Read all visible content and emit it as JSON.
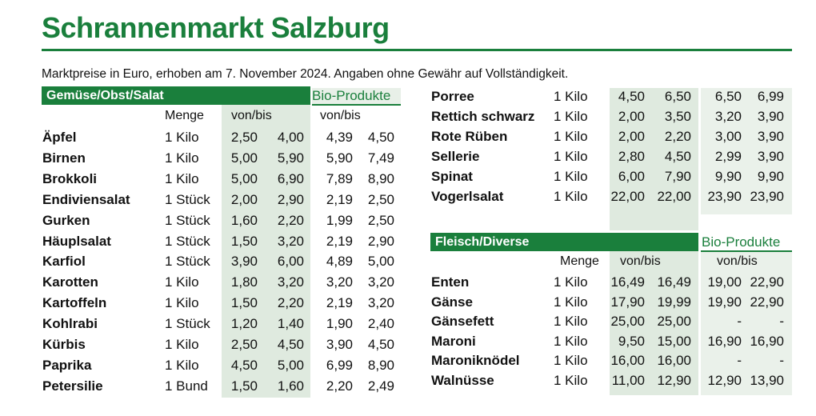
{
  "title": "Schrannenmarkt Salzburg",
  "subtitle": "Marktpreise in Euro, erhoben am 7. November 2024. Angaben ohne Gewähr auf Vollständigkeit.",
  "colors": {
    "accent": "#1a7f3c",
    "shade": "#dfeadf"
  },
  "left": {
    "section_title": "Gemüse/Obst/Salat",
    "bio_label": "Bio-Produkte",
    "headers": {
      "menge": "Menge",
      "vonbis": "von/bis",
      "bio_vonbis": "von/bis"
    },
    "rows": [
      {
        "name": "Äpfel",
        "menge": "1 Kilo",
        "von": "2,50",
        "bis": "4,00",
        "bio_von": "4,39",
        "bio_bis": "4,50"
      },
      {
        "name": "Birnen",
        "menge": "1 Kilo",
        "von": "5,00",
        "bis": "5,90",
        "bio_von": "5,90",
        "bio_bis": "7,49"
      },
      {
        "name": "Brokkoli",
        "menge": "1 Kilo",
        "von": "5,00",
        "bis": "6,90",
        "bio_von": "7,89",
        "bio_bis": "8,90"
      },
      {
        "name": "Endiviensalat",
        "menge": "1 Stück",
        "von": "2,00",
        "bis": "2,90",
        "bio_von": "2,19",
        "bio_bis": "2,50"
      },
      {
        "name": "Gurken",
        "menge": "1 Stück",
        "von": "1,60",
        "bis": "2,20",
        "bio_von": "1,99",
        "bio_bis": "2,50"
      },
      {
        "name": "Häuplsalat",
        "menge": "1 Stück",
        "von": "1,50",
        "bis": "3,20",
        "bio_von": "2,19",
        "bio_bis": "2,90"
      },
      {
        "name": "Karfiol",
        "menge": "1 Stück",
        "von": "3,90",
        "bis": "6,00",
        "bio_von": "4,89",
        "bio_bis": "5,00"
      },
      {
        "name": "Karotten",
        "menge": "1 Kilo",
        "von": "1,80",
        "bis": "3,20",
        "bio_von": "3,20",
        "bio_bis": "3,20"
      },
      {
        "name": "Kartoffeln",
        "menge": "1 Kilo",
        "von": "1,50",
        "bis": "2,20",
        "bio_von": "2,19",
        "bio_bis": "3,20"
      },
      {
        "name": "Kohlrabi",
        "menge": "1 Stück",
        "von": "1,20",
        "bis": "1,40",
        "bio_von": "1,90",
        "bio_bis": "2,40"
      },
      {
        "name": "Kürbis",
        "menge": "1 Kilo",
        "von": "2,50",
        "bis": "4,50",
        "bio_von": "3,90",
        "bio_bis": "4,50"
      },
      {
        "name": "Paprika",
        "menge": "1 Kilo",
        "von": "4,50",
        "bis": "5,00",
        "bio_von": "6,99",
        "bio_bis": "8,90"
      },
      {
        "name": "Petersilie",
        "menge": "1 Bund",
        "von": "1,50",
        "bis": "1,60",
        "bio_von": "2,20",
        "bio_bis": "2,49"
      }
    ]
  },
  "right_top": {
    "rows": [
      {
        "name": "Porree",
        "menge": "1 Kilo",
        "von": "4,50",
        "bis": "6,50",
        "bio_von": "6,50",
        "bio_bis": "6,99"
      },
      {
        "name": "Rettich schwarz",
        "menge": "1 Kilo",
        "von": "2,00",
        "bis": "3,50",
        "bio_von": "3,20",
        "bio_bis": "3,90"
      },
      {
        "name": "Rote Rüben",
        "menge": "1 Kilo",
        "von": "2,00",
        "bis": "2,20",
        "bio_von": "3,00",
        "bio_bis": "3,90"
      },
      {
        "name": "Sellerie",
        "menge": "1 Kilo",
        "von": "2,80",
        "bis": "4,50",
        "bio_von": "2,99",
        "bio_bis": "3,90"
      },
      {
        "name": "Spinat",
        "menge": "1 Kilo",
        "von": "6,00",
        "bis": "7,90",
        "bio_von": "9,90",
        "bio_bis": "9,90"
      },
      {
        "name": "Vogerlsalat",
        "menge": "1 Kilo",
        "von": "22,00",
        "bis": "22,00",
        "bio_von": "23,90",
        "bio_bis": "23,90"
      }
    ]
  },
  "right_bottom": {
    "section_title": "Fleisch/Diverse",
    "bio_label": "Bio-Produkte",
    "headers": {
      "menge": "Menge",
      "vonbis": "von/bis",
      "bio_vonbis": "von/bis"
    },
    "rows": [
      {
        "name": "Enten",
        "menge": "1 Kilo",
        "von": "16,49",
        "bis": "16,49",
        "bio_von": "19,00",
        "bio_bis": "22,90"
      },
      {
        "name": "Gänse",
        "menge": "1 Kilo",
        "von": "17,90",
        "bis": "19,99",
        "bio_von": "19,90",
        "bio_bis": "22,90"
      },
      {
        "name": "Gänsefett",
        "menge": "1 Kilo",
        "von": "25,00",
        "bis": "25,00",
        "bio_von": "-",
        "bio_bis": "-"
      },
      {
        "name": "Maroni",
        "menge": "1 Kilo",
        "von": "9,50",
        "bis": "15,00",
        "bio_von": "16,90",
        "bio_bis": "16,90"
      },
      {
        "name": "Maroniknödel",
        "menge": "1 Kilo",
        "von": "16,00",
        "bis": "16,00",
        "bio_von": "-",
        "bio_bis": "-"
      },
      {
        "name": "Walnüsse",
        "menge": "1 Kilo",
        "von": "11,00",
        "bis": "12,90",
        "bio_von": "12,90",
        "bio_bis": "13,90"
      }
    ]
  }
}
